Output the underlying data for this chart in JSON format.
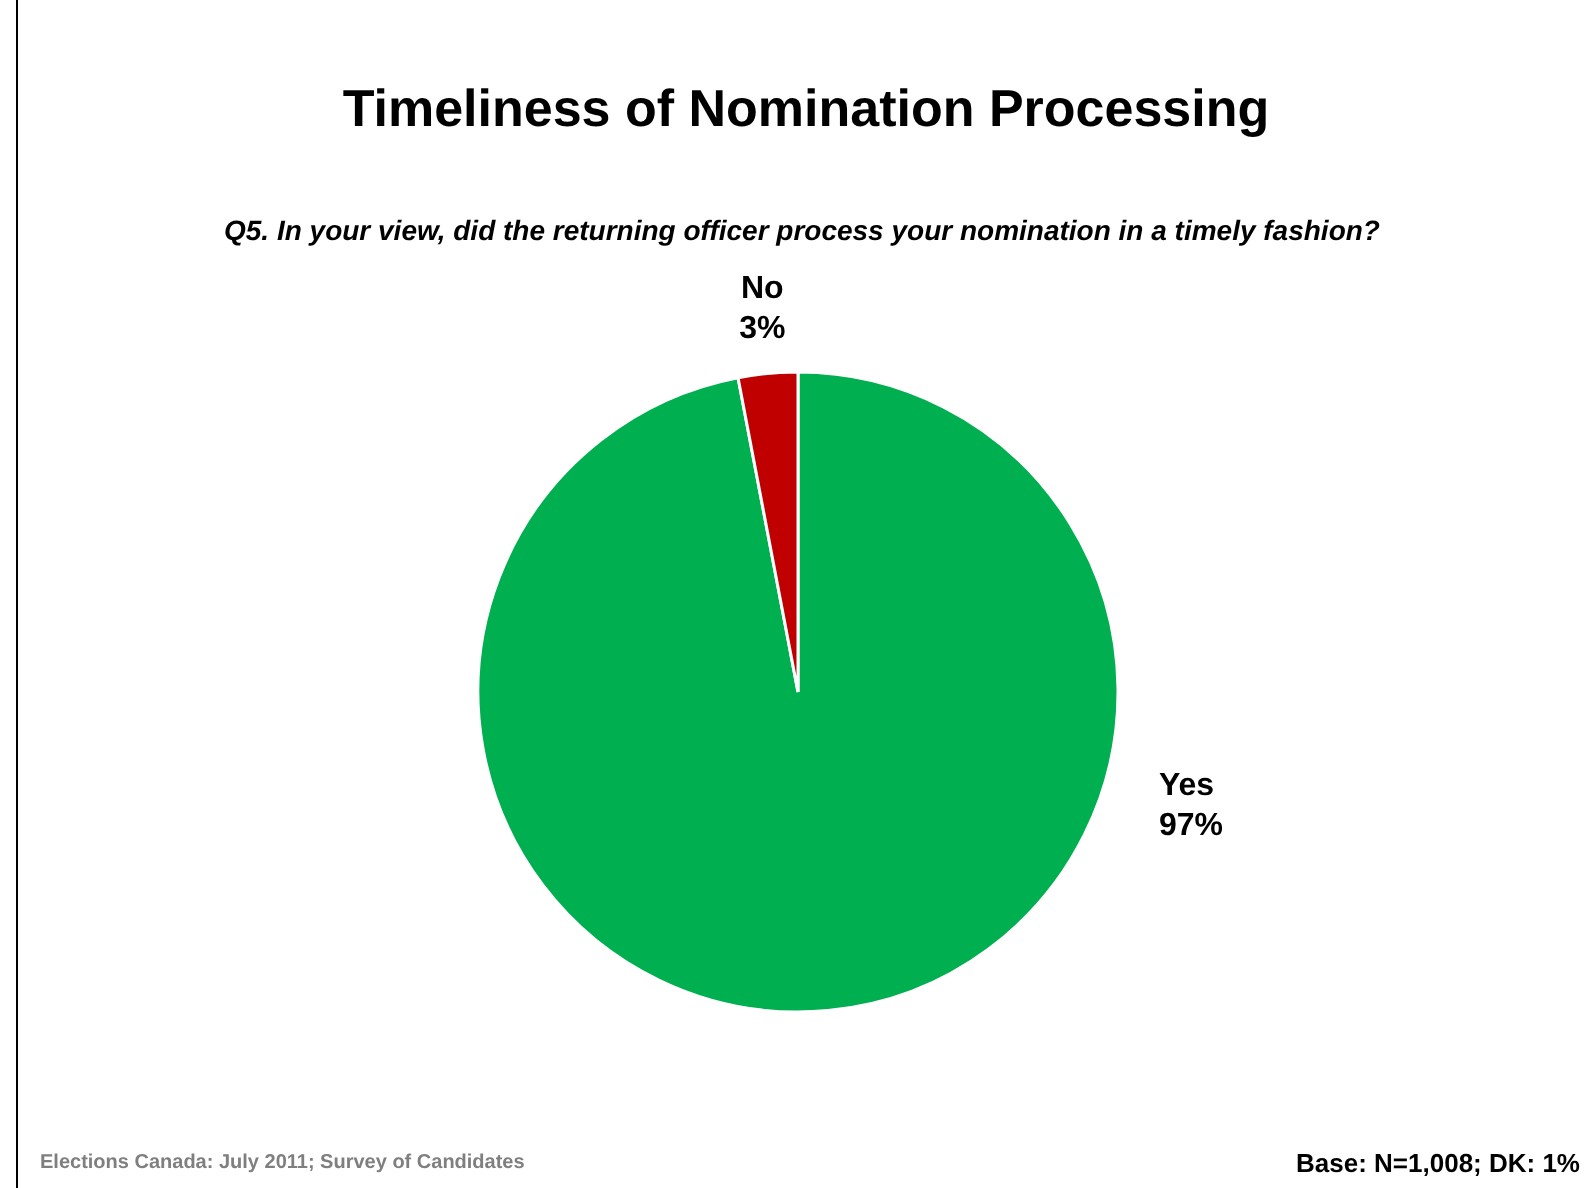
{
  "chart_data": {
    "type": "pie",
    "title": "Timeliness of Nomination Processing",
    "subtitle": "Q5. In your view, did the returning officer process your nomination in a timely fashion?",
    "categories": [
      "Yes",
      "No"
    ],
    "values": [
      97,
      3
    ],
    "colors": [
      "#00b050",
      "#c00000"
    ],
    "value_labels": [
      "97%",
      "3%"
    ],
    "legend": false,
    "annotations": [
      "Elections Canada: July 2011; Survey of Candidates",
      "Base: N=1,008; DK: 1%"
    ]
  }
}
